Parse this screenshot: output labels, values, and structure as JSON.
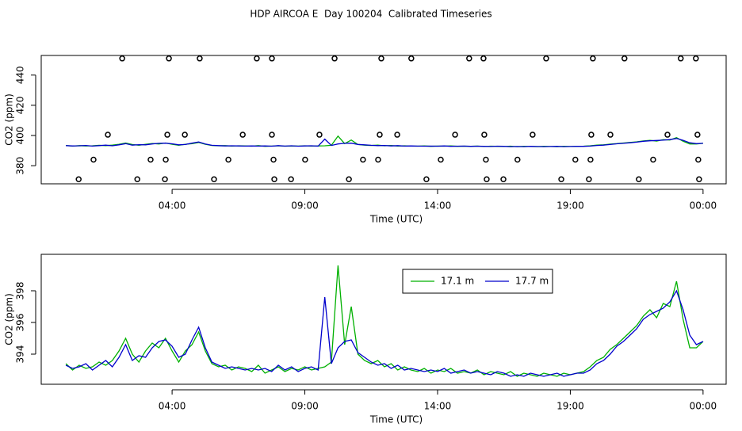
{
  "chart_data": [
    {
      "type": "scatter",
      "title": "HDP AIRCOA E  Day 100204  Calibrated Timeseries",
      "xlabel": "Time (UTC)",
      "ylabel": "CO2 (ppm)",
      "xlim": [
        -0.93,
        24.87
      ],
      "xticks": [
        {
          "value": 4,
          "label": "04:00"
        },
        {
          "value": 9,
          "label": "09:00"
        },
        {
          "value": 14,
          "label": "14:00"
        },
        {
          "value": 19,
          "label": "19:00"
        },
        {
          "value": 24,
          "label": "00:00"
        }
      ],
      "ylim": [
        368,
        453
      ],
      "yticks": [
        380,
        400,
        420,
        440
      ],
      "series": [
        {
          "color": "#000000",
          "x": [
            2.12,
            3.88,
            5.04,
            7.19,
            7.76,
            10.12,
            11.88,
            13.01,
            15.19,
            15.73,
            18.09,
            19.85,
            21.04,
            23.16,
            23.73,
            1.58,
            3.82,
            4.48,
            6.66,
            7.76,
            9.55,
            11.82,
            12.48,
            14.66,
            15.76,
            17.58,
            19.79,
            20.51,
            22.66,
            23.79,
            1.04,
            3.19,
            3.76,
            6.12,
            7.82,
            9.01,
            11.19,
            11.76,
            14.12,
            15.82,
            17.01,
            19.19,
            19.76,
            22.12,
            23.82,
            0.48,
            2.69,
            3.73,
            5.58,
            7.85,
            8.48,
            10.66,
            13.58,
            15.85,
            16.48,
            18.66,
            19.7,
            21.58,
            23.85
          ],
          "values": [
            451,
            451,
            451,
            451,
            451,
            451,
            451,
            451,
            451,
            451,
            451,
            451,
            451,
            451,
            451,
            400.5,
            400.5,
            400.5,
            400.5,
            400.5,
            400.5,
            400.5,
            400.5,
            400.5,
            400.5,
            400.5,
            400.5,
            400.5,
            400.5,
            400.5,
            384,
            384,
            384,
            384,
            384,
            384,
            384,
            384,
            384,
            384,
            384,
            384,
            384,
            384,
            384,
            371,
            371,
            371,
            371,
            371,
            371,
            371,
            371,
            371,
            371,
            371,
            371,
            371,
            371
          ]
        }
      ]
    },
    {
      "type": "line",
      "xlabel": "Time (UTC)",
      "ylabel": "CO2 (ppm)",
      "xlim": [
        -0.93,
        24.87
      ],
      "xticks": [
        {
          "value": 4,
          "label": "04:00"
        },
        {
          "value": 9,
          "label": "09:00"
        },
        {
          "value": 14,
          "label": "14:00"
        },
        {
          "value": 19,
          "label": "19:00"
        },
        {
          "value": 24,
          "label": "00:00"
        }
      ],
      "ylim": [
        392.1,
        400.3
      ],
      "yticks": [
        394,
        396,
        398
      ],
      "legend": "top-right",
      "x": [
        0,
        0.25,
        0.5,
        0.75,
        1,
        1.25,
        1.5,
        1.75,
        2,
        2.25,
        2.5,
        2.75,
        3,
        3.25,
        3.5,
        3.75,
        4,
        4.25,
        4.5,
        4.75,
        5,
        5.25,
        5.5,
        5.75,
        6,
        6.25,
        6.5,
        6.75,
        7,
        7.25,
        7.5,
        7.75,
        8,
        8.25,
        8.5,
        8.75,
        9,
        9.25,
        9.5,
        9.75,
        10,
        10.25,
        10.5,
        10.75,
        11,
        11.25,
        11.5,
        11.75,
        12,
        12.25,
        12.5,
        12.75,
        13,
        13.25,
        13.5,
        13.75,
        14,
        14.25,
        14.5,
        14.75,
        15,
        15.25,
        15.5,
        15.75,
        16,
        16.25,
        16.5,
        16.75,
        17,
        17.25,
        17.5,
        17.75,
        18,
        18.25,
        18.5,
        18.75,
        19,
        19.25,
        19.5,
        19.75,
        20,
        20.25,
        20.5,
        20.75,
        21,
        21.25,
        21.5,
        21.75,
        22,
        22.25,
        22.5,
        22.75,
        23,
        23.25,
        23.5,
        23.75,
        24
      ],
      "series": [
        {
          "name": "17.1 m",
          "color": "#00b000",
          "values": [
            393.4,
            393.0,
            393.3,
            393.1,
            393.2,
            393.5,
            393.3,
            393.6,
            394.2,
            395.0,
            394.0,
            393.5,
            394.2,
            394.7,
            394.4,
            395.0,
            394.2,
            393.5,
            394.2,
            394.6,
            395.4,
            394.2,
            393.4,
            393.2,
            393.3,
            393.0,
            393.2,
            393.1,
            392.9,
            393.3,
            392.8,
            393.0,
            393.2,
            392.9,
            393.1,
            393.0,
            393.2,
            393.0,
            393.1,
            393.2,
            393.5,
            399.6,
            394.6,
            397.0,
            394.0,
            393.6,
            393.4,
            393.6,
            393.2,
            393.4,
            393.0,
            393.2,
            393.0,
            392.9,
            393.1,
            392.8,
            393.0,
            392.9,
            393.1,
            392.8,
            392.9,
            392.8,
            393.0,
            392.7,
            392.9,
            392.8,
            392.7,
            392.9,
            392.6,
            392.8,
            392.7,
            392.6,
            392.8,
            392.7,
            392.6,
            392.8,
            392.7,
            392.8,
            392.9,
            393.2,
            393.6,
            393.8,
            394.3,
            394.6,
            395.0,
            395.4,
            395.8,
            396.4,
            396.8,
            396.3,
            397.2,
            397.0,
            398.6,
            396.2,
            394.4,
            394.4,
            394.8
          ]
        },
        {
          "name": "17.7 m",
          "color": "#0000cc",
          "values": [
            393.3,
            393.1,
            393.2,
            393.4,
            393.0,
            393.3,
            393.6,
            393.2,
            393.8,
            394.6,
            393.6,
            393.9,
            393.8,
            394.4,
            394.8,
            394.9,
            394.5,
            393.8,
            394.0,
            394.9,
            395.7,
            394.4,
            393.5,
            393.3,
            393.1,
            393.2,
            393.1,
            393.0,
            393.1,
            393.0,
            393.1,
            392.9,
            393.3,
            393.0,
            393.2,
            392.9,
            393.1,
            393.2,
            393.0,
            397.6,
            393.4,
            394.4,
            394.8,
            394.9,
            394.1,
            393.8,
            393.5,
            393.3,
            393.4,
            393.1,
            393.3,
            393.0,
            393.1,
            393.0,
            392.9,
            393.0,
            392.9,
            393.1,
            392.8,
            392.9,
            393.0,
            392.8,
            392.9,
            392.8,
            392.7,
            392.9,
            392.8,
            392.6,
            392.7,
            392.6,
            392.8,
            392.7,
            392.6,
            392.7,
            392.8,
            392.6,
            392.7,
            392.8,
            392.8,
            393.0,
            393.4,
            393.6,
            394.0,
            394.5,
            394.8,
            395.2,
            395.6,
            396.2,
            396.5,
            396.7,
            396.9,
            397.3,
            398.0,
            396.8,
            395.2,
            394.6,
            394.8
          ]
        }
      ]
    }
  ]
}
